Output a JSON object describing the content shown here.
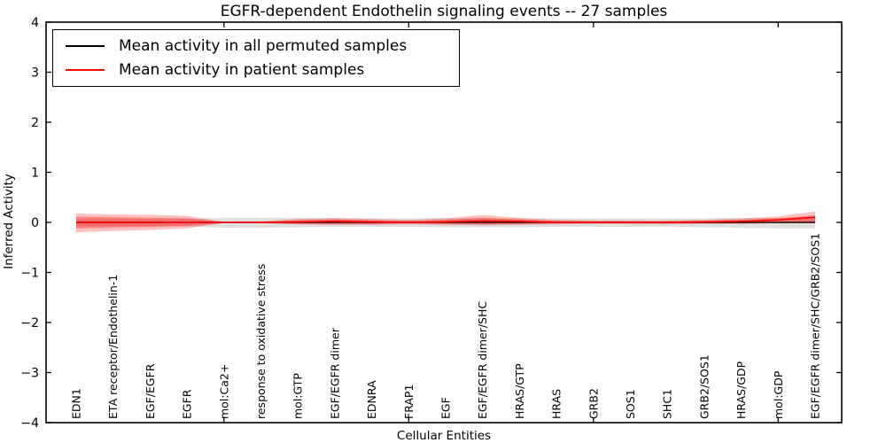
{
  "chart_data": {
    "type": "line",
    "title": "EGFR-dependent Endothelin signaling events -- 27 samples",
    "xlabel": "Cellular Entities",
    "ylabel": "Inferred Activity",
    "ylim": [
      -4,
      4
    ],
    "grid": false,
    "legend_position": "upper-left",
    "zero_line_style": "dotted",
    "colors": {
      "permuted": "#000000",
      "patient": "#ff0000",
      "axis": "#000000"
    },
    "yticks": {
      "values": [
        4,
        3,
        2,
        1,
        0,
        -1,
        -2,
        -3,
        -4
      ],
      "labels": [
        "4",
        "3",
        "2",
        "1",
        "0",
        "−1",
        "−2",
        "−3",
        "−4"
      ]
    },
    "x_major_tick_indices": [
      4,
      9,
      14,
      19
    ],
    "categories": [
      "EDN1",
      "ETA receptor/Endothelin-1",
      "EGF/EGFR",
      "EGFR",
      "mol:Ca2+",
      "response to oxidative stress",
      "mol:GTP",
      "EGF/EGFR dimer",
      "EDNRA",
      "FRAP1",
      "EGF",
      "EGF/EGFR dimer/SHC",
      "HRAS/GTP",
      "HRAS",
      "GRB2",
      "SOS1",
      "SHC1",
      "GRB2/SOS1",
      "HRAS/GDP",
      "mol:GDP",
      "EGF/EGFR dimer/SHC/GRB2/SOS1"
    ],
    "series": [
      {
        "name": "Mean activity in all permuted samples",
        "color": "#000000",
        "values": [
          0,
          0,
          0,
          0,
          0,
          0,
          0,
          0,
          0,
          0,
          0,
          0,
          0,
          0,
          0,
          0,
          0,
          0,
          0,
          0,
          0
        ]
      },
      {
        "name": "Mean activity in patient samples",
        "color": "#ff0000",
        "values": [
          0,
          0,
          0,
          0,
          0,
          0,
          0.01,
          0.02,
          0.01,
          0,
          0.01,
          0.03,
          0.02,
          0,
          0,
          0,
          0,
          0.01,
          0.02,
          0.05,
          0.1
        ]
      }
    ],
    "bands": [
      {
        "name": "permuted-band",
        "color": "#999999",
        "opacity": 0.3,
        "upper": [
          0.06,
          0.06,
          0.06,
          0.07,
          0.09,
          0.09,
          0.09,
          0.08,
          0.08,
          0.08,
          0.09,
          0.08,
          0.08,
          0.08,
          0.08,
          0.08,
          0.08,
          0.08,
          0.09,
          0.09,
          0.08
        ],
        "lower": [
          -0.07,
          -0.07,
          -0.07,
          -0.08,
          -0.11,
          -0.11,
          -0.1,
          -0.09,
          -0.09,
          -0.09,
          -0.1,
          -0.1,
          -0.1,
          -0.09,
          -0.09,
          -0.09,
          -0.09,
          -0.1,
          -0.11,
          -0.12,
          -0.12
        ]
      },
      {
        "name": "patient-band-outer",
        "color": "#ff0000",
        "opacity": 0.25,
        "upper": [
          0.18,
          0.16,
          0.15,
          0.13,
          0.01,
          0.02,
          0.07,
          0.09,
          0.07,
          0.05,
          0.08,
          0.15,
          0.09,
          0.05,
          0.04,
          0.04,
          0.04,
          0.05,
          0.08,
          0.12,
          0.22
        ],
        "lower": [
          -0.2,
          -0.17,
          -0.15,
          -0.12,
          -0.01,
          -0.02,
          -0.04,
          -0.05,
          -0.05,
          -0.04,
          -0.05,
          -0.06,
          -0.05,
          -0.04,
          -0.03,
          -0.03,
          -0.04,
          -0.03,
          -0.03,
          -0.02,
          -0.02
        ]
      },
      {
        "name": "patient-band-inner",
        "color": "#ff0000",
        "opacity": 0.35,
        "upper": [
          0.11,
          0.1,
          0.09,
          0.08,
          0.01,
          0.01,
          0.04,
          0.06,
          0.04,
          0.03,
          0.05,
          0.09,
          0.06,
          0.03,
          0.02,
          0.02,
          0.02,
          0.03,
          0.05,
          0.08,
          0.14
        ],
        "lower": [
          -0.12,
          -0.1,
          -0.09,
          -0.07,
          -0.01,
          -0.01,
          -0.03,
          -0.03,
          -0.03,
          -0.02,
          -0.03,
          -0.04,
          -0.03,
          -0.02,
          -0.02,
          -0.02,
          -0.02,
          -0.02,
          -0.02,
          -0.01,
          -0.01
        ]
      }
    ]
  }
}
